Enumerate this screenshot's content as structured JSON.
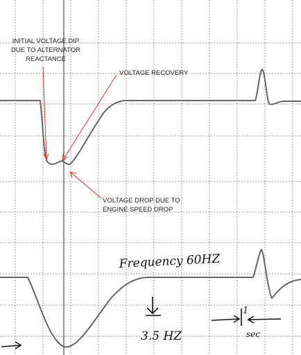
{
  "annotations": {
    "initial_dip": {
      "lines": [
        "INITIAL VOLTAGE DIP",
        "DUE TO ALTERNATOR",
        "REACTANCE"
      ]
    },
    "recovery": {
      "lines": [
        "VOLTAGE RECOVERY"
      ]
    },
    "engine_drop": {
      "lines": [
        "VOLTAGE DROP DUE TO",
        "ENGINE SPEED DROP"
      ]
    }
  },
  "handwriting": {
    "frequency": "Frequency 60HZ",
    "dip": "3.5 HZ",
    "interval_value": "1",
    "interval_unit": "sec"
  }
}
